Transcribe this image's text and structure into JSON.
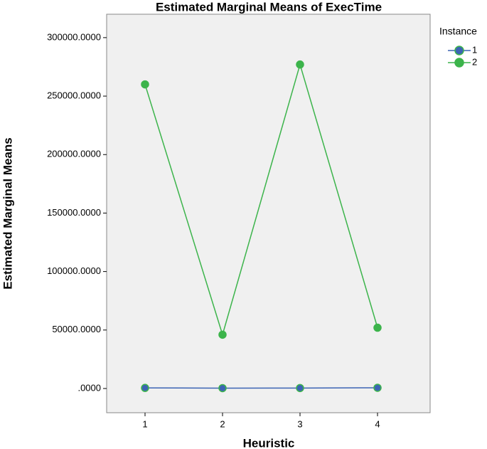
{
  "chart_data": {
    "type": "line",
    "title": "Estimated Marginal Means of ExecTime",
    "x_label": "Heuristic",
    "y_label": "Estimated Marginal Means",
    "legend_title": "Instance",
    "legend": "right",
    "categories": [
      "1",
      "2",
      "3",
      "4"
    ],
    "series": [
      {
        "name": "1",
        "color": "#3c64b4",
        "values": [
          500,
          300,
          400,
          600
        ]
      },
      {
        "name": "2",
        "color": "#3cb44b",
        "values": [
          260000,
          46000,
          277000,
          52000
        ]
      }
    ],
    "ylim": [
      -20700,
      320000
    ],
    "yticks": [
      {
        "value": 0,
        "label": ".0000"
      },
      {
        "value": 50000,
        "label": "50000.0000"
      },
      {
        "value": 100000,
        "label": "100000.0000"
      },
      {
        "value": 150000,
        "label": "150000.0000"
      },
      {
        "value": 200000,
        "label": "200000.0000"
      },
      {
        "value": 250000,
        "label": "250000.0000"
      },
      {
        "value": 300000,
        "label": "300000.0000"
      }
    ],
    "grid": false
  }
}
